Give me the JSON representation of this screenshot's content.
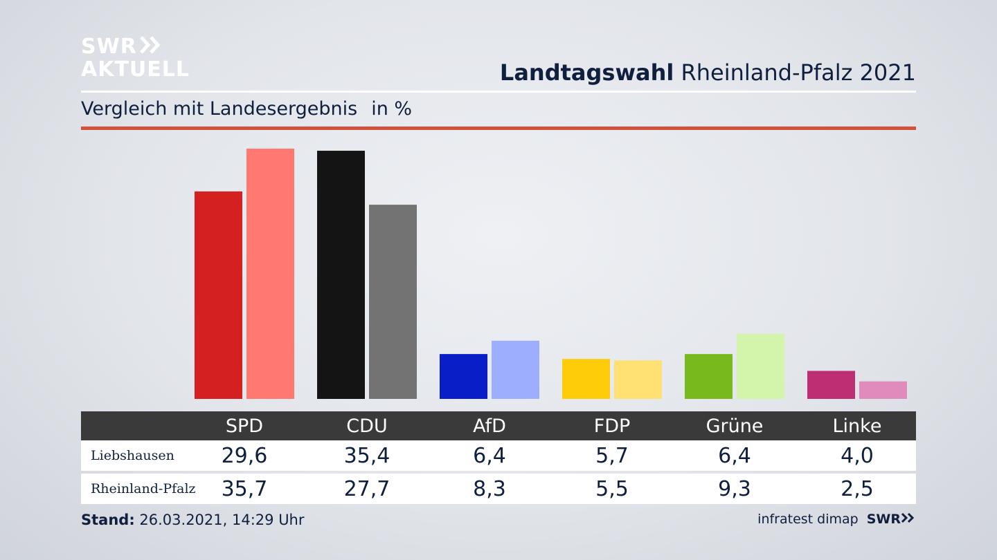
{
  "branding": {
    "logo_line1": "SWR",
    "logo_line2": "AKTUELL",
    "footer_logo": "SWR"
  },
  "header": {
    "title_bold": "Landtagswahl",
    "title_rest": "Rheinland-Pfalz 2021",
    "subtitle": "Vergleich mit Landesergebnis",
    "unit": "in %"
  },
  "footer": {
    "stand_label": "Stand:",
    "stand_value": "26.03.2021, 14:29 Uhr",
    "source": "infratest dimap"
  },
  "chart_data": {
    "type": "bar",
    "categories": [
      "SPD",
      "CDU",
      "AfD",
      "FDP",
      "Grüne",
      "Linke"
    ],
    "series": [
      {
        "name": "Liebshausen",
        "values": [
          29.6,
          35.4,
          6.4,
          5.7,
          6.4,
          4.0
        ],
        "display": [
          "29,6",
          "35,4",
          "6,4",
          "5,7",
          "6,4",
          "4,0"
        ]
      },
      {
        "name": "Rheinland-Pfalz",
        "values": [
          35.7,
          27.7,
          8.3,
          5.5,
          9.3,
          2.5
        ],
        "display": [
          "35,7",
          "27,7",
          "8,3",
          "5,5",
          "9,3",
          "2,5"
        ]
      }
    ],
    "colors": {
      "Liebshausen": [
        "#d42020",
        "#141414",
        "#0a1ec8",
        "#ffcc0a",
        "#78b91e",
        "#bd2e73"
      ],
      "Rheinland-Pfalz": [
        "#ff7872",
        "#737373",
        "#9eaeff",
        "#ffe173",
        "#d3f4ab",
        "#e08bbb"
      ]
    },
    "ylim": [
      0,
      35.7
    ],
    "grid": false
  }
}
